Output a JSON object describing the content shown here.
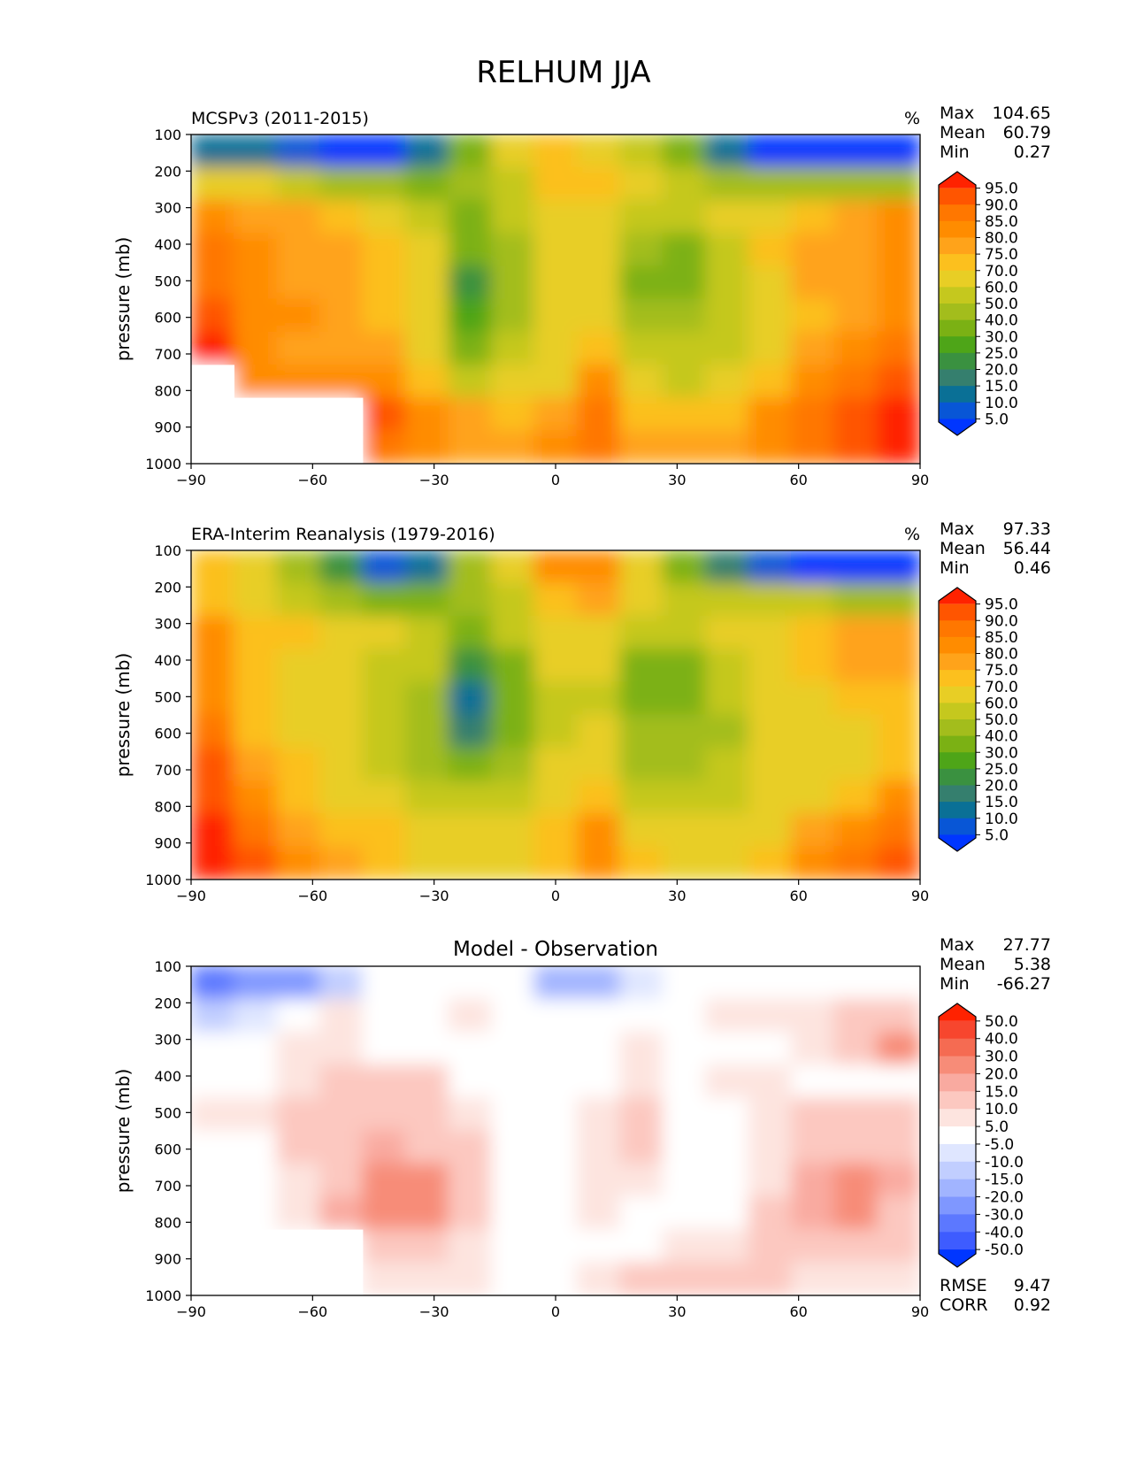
{
  "figure": {
    "title": "RELHUM JJA"
  },
  "chart_data": [
    {
      "type": "heatmap",
      "title": "MCSPv3 (2011-2015)",
      "units": "%",
      "ylabel": "pressure (mb)",
      "xlim": [
        -90,
        90
      ],
      "ylim": [
        1000,
        100
      ],
      "xticks": [
        "−90",
        "−60",
        "−30",
        "0",
        "30",
        "60",
        "90"
      ],
      "yticks": [
        "100",
        "200",
        "300",
        "400",
        "500",
        "600",
        "700",
        "800",
        "900",
        "1000"
      ],
      "stats": [
        {
          "label": "Max",
          "value": "104.65"
        },
        {
          "label": "Mean",
          "value": "60.79"
        },
        {
          "label": "Min",
          "value": "0.27"
        }
      ],
      "colorbar": {
        "levels": [
          "95.0",
          "90.0",
          "85.0",
          "80.0",
          "75.0",
          "70.0",
          "60.0",
          "50.0",
          "40.0",
          "30.0",
          "25.0",
          "20.0",
          "15.0",
          "10.0",
          "5.0"
        ],
        "colors": [
          "#ff2200",
          "#ff5500",
          "#ff7700",
          "#ff8c00",
          "#ffa31a",
          "#fcc01e",
          "#e8ce25",
          "#c5c81e",
          "#a3bd1c",
          "#7bb114",
          "#4ea518",
          "#3a9140",
          "#357f6e",
          "#0a7096",
          "#0856d6",
          "#0036ff"
        ]
      },
      "z": [
        [
          10,
          14,
          6,
          2,
          4,
          12,
          38,
          60,
          70,
          68,
          50,
          32,
          14,
          4,
          2,
          1,
          1
        ],
        [
          62,
          60,
          56,
          48,
          40,
          34,
          48,
          58,
          70,
          72,
          62,
          52,
          46,
          42,
          40,
          40,
          42
        ],
        [
          80,
          78,
          76,
          72,
          66,
          56,
          38,
          50,
          66,
          66,
          56,
          52,
          60,
          66,
          72,
          78,
          80
        ],
        [
          85,
          80,
          78,
          76,
          72,
          62,
          30,
          44,
          62,
          64,
          40,
          34,
          58,
          70,
          76,
          78,
          80
        ],
        [
          88,
          80,
          78,
          76,
          72,
          60,
          24,
          40,
          62,
          64,
          38,
          32,
          56,
          68,
          76,
          78,
          80
        ],
        [
          92,
          82,
          80,
          76,
          74,
          62,
          28,
          44,
          64,
          66,
          44,
          40,
          56,
          66,
          74,
          78,
          82
        ],
        [
          96,
          80,
          78,
          78,
          76,
          66,
          38,
          50,
          68,
          74,
          54,
          50,
          58,
          66,
          76,
          82,
          88
        ],
        [
          null,
          82,
          80,
          82,
          84,
          74,
          58,
          60,
          68,
          82,
          62,
          56,
          60,
          74,
          82,
          88,
          92
        ],
        [
          null,
          null,
          null,
          null,
          92,
          84,
          76,
          70,
          76,
          86,
          72,
          70,
          72,
          80,
          88,
          92,
          96
        ],
        [
          null,
          null,
          null,
          null,
          86,
          82,
          76,
          76,
          80,
          86,
          78,
          76,
          78,
          82,
          88,
          94,
          98
        ]
      ]
    },
    {
      "type": "heatmap",
      "title": "ERA-Interim Reanalysis (1979-2016)",
      "units": "%",
      "ylabel": "pressure (mb)",
      "xlim": [
        -90,
        90
      ],
      "ylim": [
        1000,
        100
      ],
      "xticks": [
        "−90",
        "−60",
        "−30",
        "0",
        "30",
        "60",
        "90"
      ],
      "yticks": [
        "100",
        "200",
        "300",
        "400",
        "500",
        "600",
        "700",
        "800",
        "900",
        "1000"
      ],
      "stats": [
        {
          "label": "Max",
          "value": "97.33"
        },
        {
          "label": "Mean",
          "value": "56.44"
        },
        {
          "label": "Min",
          "value": "0.46"
        }
      ],
      "colorbar": {
        "levels": [
          "95.0",
          "90.0",
          "85.0",
          "80.0",
          "75.0",
          "70.0",
          "60.0",
          "50.0",
          "40.0",
          "30.0",
          "25.0",
          "20.0",
          "15.0",
          "10.0",
          "5.0"
        ],
        "colors": [
          "#ff2200",
          "#ff5500",
          "#ff7700",
          "#ff8c00",
          "#ffa31a",
          "#fcc01e",
          "#e8ce25",
          "#c5c81e",
          "#a3bd1c",
          "#7bb114",
          "#4ea518",
          "#3a9140",
          "#357f6e",
          "#0a7096",
          "#0856d6",
          "#0036ff"
        ]
      },
      "z": [
        [
          70,
          60,
          40,
          20,
          8,
          12,
          40,
          62,
          80,
          84,
          60,
          34,
          16,
          8,
          4,
          2,
          2
        ],
        [
          72,
          62,
          56,
          46,
          38,
          30,
          40,
          56,
          74,
          76,
          62,
          54,
          52,
          50,
          50,
          48,
          46
        ],
        [
          80,
          74,
          70,
          66,
          62,
          56,
          38,
          50,
          66,
          66,
          50,
          50,
          60,
          68,
          74,
          76,
          76
        ],
        [
          82,
          72,
          66,
          64,
          58,
          50,
          24,
          38,
          60,
          60,
          38,
          34,
          52,
          64,
          72,
          76,
          78
        ],
        [
          80,
          72,
          64,
          60,
          56,
          44,
          14,
          34,
          56,
          58,
          36,
          32,
          50,
          62,
          68,
          70,
          72
        ],
        [
          86,
          74,
          66,
          62,
          52,
          40,
          18,
          36,
          58,
          60,
          40,
          40,
          48,
          60,
          64,
          66,
          70
        ],
        [
          90,
          78,
          70,
          60,
          52,
          46,
          30,
          46,
          62,
          66,
          48,
          44,
          50,
          60,
          64,
          68,
          72
        ],
        [
          94,
          80,
          72,
          68,
          60,
          56,
          50,
          56,
          64,
          74,
          58,
          52,
          56,
          62,
          68,
          74,
          80
        ],
        [
          96,
          86,
          78,
          74,
          72,
          68,
          64,
          64,
          72,
          80,
          66,
          62,
          64,
          68,
          76,
          82,
          86
        ],
        [
          97,
          90,
          82,
          76,
          72,
          68,
          66,
          68,
          74,
          80,
          70,
          66,
          66,
          72,
          80,
          86,
          90
        ]
      ]
    },
    {
      "type": "heatmap",
      "title": "Model - Observation",
      "ylabel": "pressure (mb)",
      "xlim": [
        -90,
        90
      ],
      "ylim": [
        1000,
        100
      ],
      "xticks": [
        "−90",
        "−60",
        "−30",
        "0",
        "30",
        "60",
        "90"
      ],
      "yticks": [
        "100",
        "200",
        "300",
        "400",
        "500",
        "600",
        "700",
        "800",
        "900",
        "1000"
      ],
      "stats": [
        {
          "label": "Max",
          "value": "27.77"
        },
        {
          "label": "Mean",
          "value": "5.38"
        },
        {
          "label": "Min",
          "value": "-66.27"
        }
      ],
      "extra_stats": [
        {
          "label": "RMSE",
          "value": "9.47"
        },
        {
          "label": "CORR",
          "value": "0.92"
        }
      ],
      "colorbar": {
        "levels": [
          "50.0",
          "40.0",
          "30.0",
          "20.0",
          "15.0",
          "10.0",
          "5.0",
          "-5.0",
          "-10.0",
          "-15.0",
          "-20.0",
          "-30.0",
          "-40.0",
          "-50.0"
        ],
        "colors": [
          "#ff2200",
          "#f7462e",
          "#f56b52",
          "#f78c78",
          "#f9aaa0",
          "#fcc8c0",
          "#fde4df",
          "#ffffff",
          "#dfe6ff",
          "#c1ceff",
          "#a1b4ff",
          "#7f97ff",
          "#5c78ff",
          "#3e5cff",
          "#0036ff"
        ]
      },
      "z": [
        [
          -40,
          -30,
          -25,
          -14,
          -4,
          0,
          -2,
          -4,
          -16,
          -18,
          -8,
          -2,
          0,
          0,
          0,
          0,
          0
        ],
        [
          -14,
          -8,
          0,
          6,
          4,
          4,
          6,
          2,
          -4,
          -4,
          0,
          -2,
          6,
          6,
          8,
          10,
          10
        ],
        [
          -4,
          2,
          6,
          6,
          4,
          0,
          0,
          0,
          2,
          4,
          6,
          2,
          0,
          4,
          8,
          12,
          22
        ],
        [
          2,
          2,
          8,
          10,
          12,
          10,
          4,
          2,
          -2,
          4,
          6,
          2,
          6,
          6,
          4,
          4,
          2
        ],
        [
          6,
          6,
          10,
          14,
          12,
          12,
          8,
          4,
          2,
          6,
          12,
          4,
          4,
          6,
          10,
          10,
          10
        ],
        [
          4,
          4,
          12,
          14,
          16,
          12,
          10,
          4,
          2,
          6,
          10,
          4,
          4,
          8,
          14,
          14,
          12
        ],
        [
          2,
          2,
          8,
          14,
          24,
          20,
          12,
          4,
          2,
          8,
          8,
          4,
          4,
          8,
          18,
          20,
          16
        ],
        [
          null,
          -2,
          8,
          16,
          24,
          22,
          10,
          2,
          2,
          6,
          4,
          2,
          4,
          10,
          18,
          20,
          14
        ],
        [
          null,
          null,
          null,
          null,
          12,
          10,
          6,
          2,
          0,
          4,
          4,
          8,
          8,
          12,
          12,
          10,
          10
        ],
        [
          null,
          null,
          null,
          null,
          8,
          8,
          6,
          4,
          4,
          8,
          12,
          14,
          12,
          10,
          8,
          6,
          6
        ]
      ]
    }
  ]
}
